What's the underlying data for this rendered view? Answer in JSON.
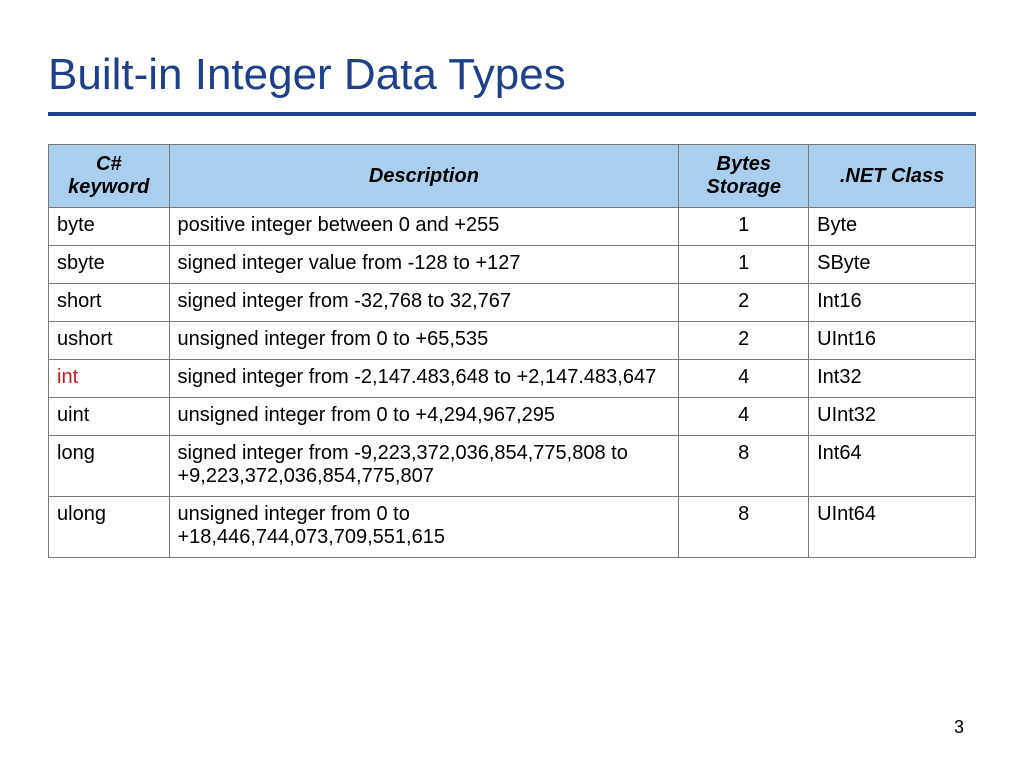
{
  "title": "Built-in Integer Data Types",
  "page_number": "3",
  "table": {
    "type": "table",
    "header_bg": "#a8cef0",
    "border_color": "#7a7a7a",
    "title_color": "#1f3f8a",
    "keyword_color": "#11297a",
    "highlight_color": "#d01818",
    "columns": [
      "C# keyword",
      "Description",
      "Bytes Storage",
      ".NET Class"
    ],
    "column_widths_pct": [
      13,
      55,
      14,
      18
    ],
    "header_fontsize": 20,
    "cell_fontsize": 20,
    "keyword_fontsize": 24,
    "rows": [
      {
        "keyword": "byte",
        "highlight": false,
        "description": "positive integer between 0 and +255",
        "bytes": "1",
        "class": "Byte"
      },
      {
        "keyword": "sbyte",
        "highlight": false,
        "description": "signed integer value from -128 to +127",
        "bytes": "1",
        "class": "SByte"
      },
      {
        "keyword": "short",
        "highlight": false,
        "description": "signed integer from -32,768 to 32,767",
        "bytes": "2",
        "class": "Int16"
      },
      {
        "keyword": "ushort",
        "highlight": false,
        "description": "unsigned integer from 0 to +65,535",
        "bytes": "2",
        "class": "UInt16"
      },
      {
        "keyword": "int",
        "highlight": true,
        "description": "signed integer from -2,147.483,648 to +2,147.483,647",
        "bytes": "4",
        "class": "Int32"
      },
      {
        "keyword": "uint",
        "highlight": false,
        "description": "unsigned integer from 0 to +4,294,967,295",
        "bytes": "4",
        "class": "UInt32"
      },
      {
        "keyword": "long",
        "highlight": false,
        "description": "signed integer from -9,223,372,036,854,775,808 to +9,223,372,036,854,775,807",
        "bytes": "8",
        "class": "Int64"
      },
      {
        "keyword": "ulong",
        "highlight": false,
        "description": "unsigned integer from 0 to +18,446,744,073,709,551,615",
        "bytes": "8",
        "class": "UInt64"
      }
    ]
  }
}
